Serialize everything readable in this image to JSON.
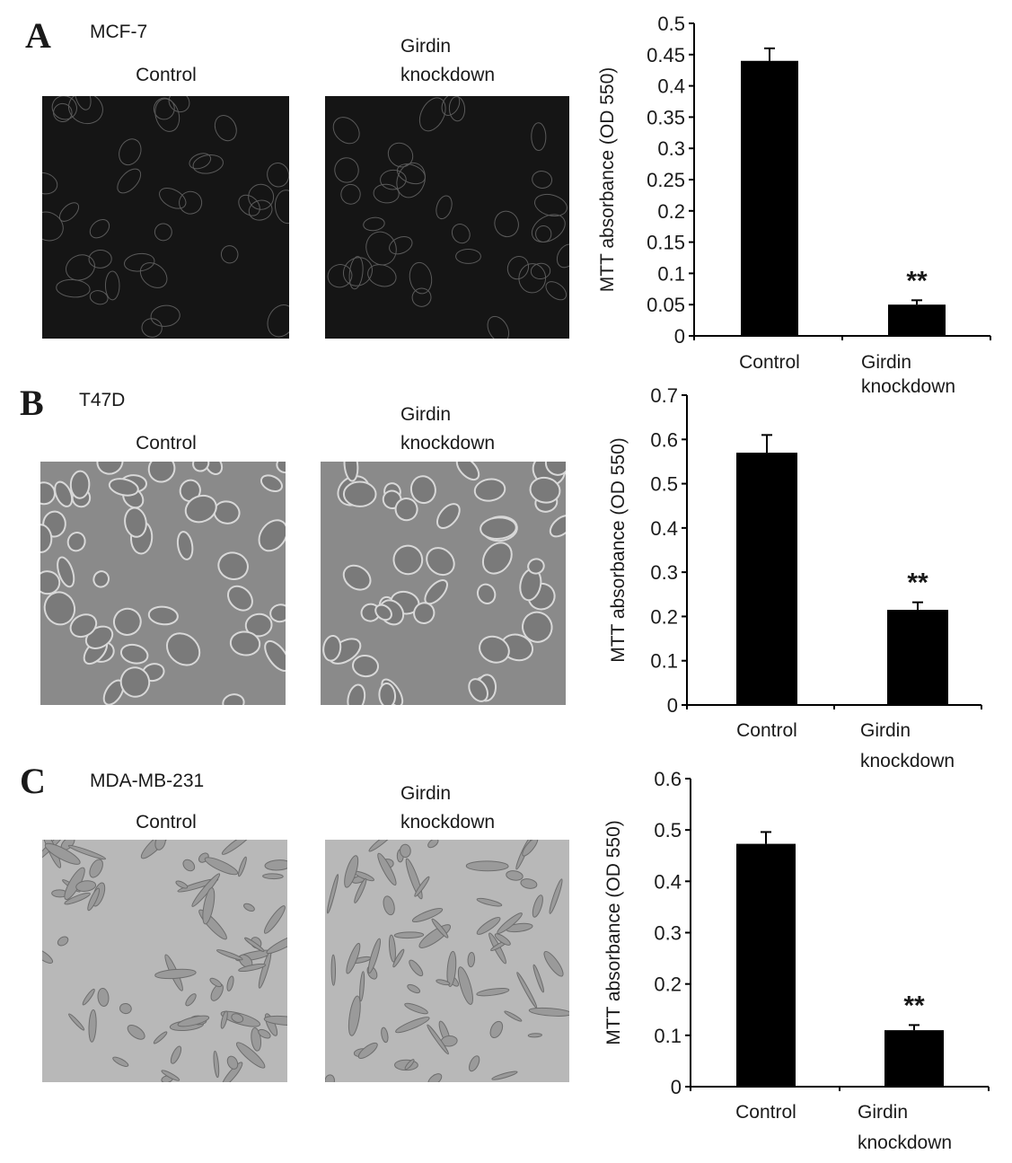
{
  "panels": [
    {
      "letter": "A",
      "cell_line": "MCF-7",
      "image_labels": [
        "Control",
        "Girdin\nknockdown"
      ],
      "image_style": "dark"
    },
    {
      "letter": "B",
      "cell_line": "T47D",
      "image_labels": [
        "Control",
        "Girdin\nknockdown"
      ],
      "image_style": "phase"
    },
    {
      "letter": "C",
      "cell_line": "MDA-MB-231",
      "image_labels": [
        "Control",
        "Girdin\nknockdown"
      ],
      "image_style": "light"
    }
  ],
  "chart_data": [
    {
      "type": "bar",
      "categories": [
        "Control",
        "Girdin knockdown"
      ],
      "values": [
        0.44,
        0.05
      ],
      "errors": [
        0.02,
        0.007
      ],
      "annotations": [
        "",
        "**"
      ],
      "ylabel": "MTT absorbance (OD 550)",
      "ylim": [
        0,
        0.5
      ],
      "yticks": [
        "0",
        "0.05",
        "0.1",
        "0.15",
        "0.2",
        "0.25",
        "0.3",
        "0.35",
        "0.4",
        "0.45",
        "0.5"
      ],
      "bar_color": "#000000"
    },
    {
      "type": "bar",
      "categories": [
        "Control",
        "Girdin knockdown"
      ],
      "values": [
        0.57,
        0.215
      ],
      "errors": [
        0.04,
        0.017
      ],
      "annotations": [
        "",
        "**"
      ],
      "ylabel": "MTT absorbance (OD 550)",
      "ylim": [
        0,
        0.7
      ],
      "yticks": [
        "0",
        "0.1",
        "0.2",
        "0.3",
        "0.4",
        "0.5",
        "0.6",
        "0.7"
      ],
      "bar_color": "#000000"
    },
    {
      "type": "bar",
      "categories": [
        "Control",
        "Girdin knockdown"
      ],
      "values": [
        0.473,
        0.11
      ],
      "errors": [
        0.023,
        0.01
      ],
      "annotations": [
        "",
        "**"
      ],
      "ylabel": "MTT absorbance (OD 550)",
      "ylim": [
        0,
        0.6
      ],
      "yticks": [
        "0",
        "0.1",
        "0.2",
        "0.3",
        "0.4",
        "0.5",
        "0.6"
      ],
      "bar_color": "#000000"
    }
  ]
}
